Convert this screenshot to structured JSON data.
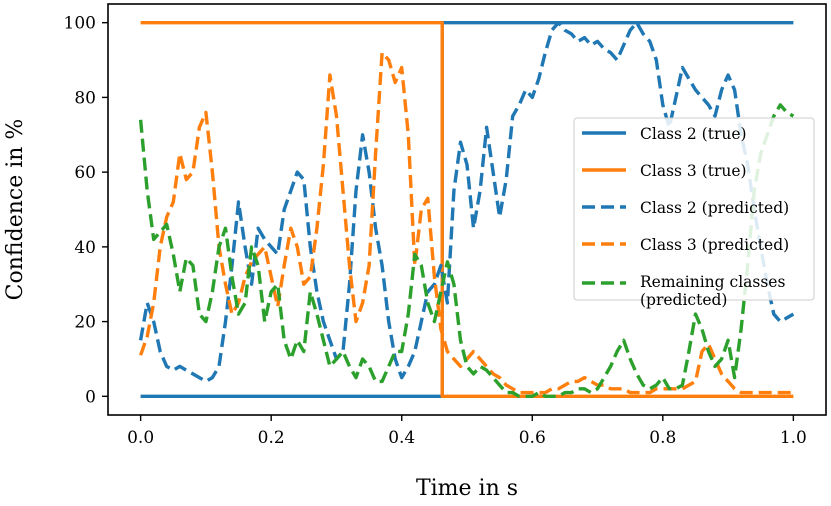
{
  "chart_data": {
    "type": "line",
    "title": "",
    "xlabel": "Time in s",
    "ylabel": "Confidence in %",
    "xlim": [
      -0.05,
      1.05
    ],
    "ylim": [
      -5,
      105
    ],
    "xticks": [
      0.0,
      0.2,
      0.4,
      0.6,
      0.8,
      1.0
    ],
    "xtick_labels": [
      "0.0",
      "0.2",
      "0.4",
      "0.6",
      "0.8",
      "1.0"
    ],
    "yticks": [
      0,
      20,
      40,
      60,
      80,
      100
    ],
    "ytick_labels": [
      "0",
      "20",
      "40",
      "60",
      "80",
      "100"
    ],
    "grid": false,
    "legend_position": "center-right",
    "series": [
      {
        "name": "Class 2 (true)",
        "label_lines": [
          "Class 2 (true)"
        ],
        "color": "#1f77b4",
        "style": "solid",
        "x": [
          0.0,
          0.462,
          0.462,
          1.0
        ],
        "y": [
          0,
          0,
          100,
          100
        ]
      },
      {
        "name": "Class 3 (true)",
        "label_lines": [
          "Class 3 (true)"
        ],
        "color": "#ff7f0e",
        "style": "solid",
        "x": [
          0.0,
          0.462,
          0.462,
          1.0
        ],
        "y": [
          100,
          100,
          0,
          0
        ]
      },
      {
        "name": "Class 2 (predicted)",
        "label_lines": [
          "Class 2 (predicted)"
        ],
        "color": "#1f77b4",
        "style": "dashed",
        "x": [
          0.0,
          0.01,
          0.02,
          0.03,
          0.04,
          0.05,
          0.06,
          0.07,
          0.08,
          0.09,
          0.1,
          0.11,
          0.12,
          0.13,
          0.14,
          0.15,
          0.16,
          0.17,
          0.18,
          0.19,
          0.2,
          0.21,
          0.22,
          0.23,
          0.24,
          0.25,
          0.26,
          0.27,
          0.28,
          0.29,
          0.3,
          0.31,
          0.32,
          0.33,
          0.34,
          0.35,
          0.36,
          0.37,
          0.38,
          0.39,
          0.4,
          0.41,
          0.42,
          0.43,
          0.44,
          0.45,
          0.46,
          0.47,
          0.48,
          0.49,
          0.5,
          0.51,
          0.52,
          0.53,
          0.54,
          0.55,
          0.56,
          0.57,
          0.58,
          0.59,
          0.6,
          0.61,
          0.62,
          0.63,
          0.64,
          0.65,
          0.66,
          0.67,
          0.68,
          0.69,
          0.7,
          0.71,
          0.72,
          0.73,
          0.74,
          0.75,
          0.76,
          0.77,
          0.78,
          0.79,
          0.8,
          0.81,
          0.82,
          0.83,
          0.84,
          0.85,
          0.86,
          0.87,
          0.88,
          0.89,
          0.9,
          0.91,
          0.92,
          0.93,
          0.94,
          0.95,
          0.96,
          0.97,
          0.98,
          0.99,
          1.0
        ],
        "y": [
          15,
          25,
          20,
          12,
          8,
          7,
          8,
          7,
          6,
          5,
          4,
          5,
          8,
          20,
          35,
          52,
          40,
          30,
          45,
          42,
          40,
          38,
          50,
          55,
          60,
          58,
          40,
          28,
          20,
          15,
          10,
          12,
          30,
          55,
          70,
          60,
          45,
          35,
          20,
          10,
          5,
          8,
          12,
          20,
          28,
          30,
          35,
          25,
          55,
          68,
          62,
          45,
          55,
          72,
          60,
          48,
          58,
          75,
          78,
          82,
          80,
          85,
          92,
          98,
          100,
          98,
          97,
          95,
          96,
          94,
          95,
          93,
          92,
          90,
          94,
          98,
          100,
          97,
          95,
          90,
          78,
          72,
          80,
          88,
          85,
          82,
          80,
          78,
          75,
          82,
          86,
          82,
          70,
          62,
          50,
          40,
          30,
          22,
          20,
          21,
          22
        ]
      },
      {
        "name": "Class 3 (predicted)",
        "label_lines": [
          "Class 3 (predicted)"
        ],
        "color": "#ff7f0e",
        "style": "dashed",
        "x": [
          0.0,
          0.01,
          0.02,
          0.03,
          0.04,
          0.05,
          0.06,
          0.07,
          0.08,
          0.09,
          0.1,
          0.11,
          0.12,
          0.13,
          0.14,
          0.15,
          0.16,
          0.17,
          0.18,
          0.19,
          0.2,
          0.21,
          0.22,
          0.23,
          0.24,
          0.25,
          0.26,
          0.27,
          0.28,
          0.29,
          0.3,
          0.31,
          0.32,
          0.33,
          0.34,
          0.35,
          0.36,
          0.37,
          0.38,
          0.39,
          0.4,
          0.41,
          0.42,
          0.43,
          0.44,
          0.45,
          0.46,
          0.47,
          0.48,
          0.49,
          0.5,
          0.51,
          0.52,
          0.53,
          0.54,
          0.55,
          0.56,
          0.57,
          0.58,
          0.59,
          0.6,
          0.61,
          0.62,
          0.63,
          0.64,
          0.65,
          0.66,
          0.67,
          0.68,
          0.69,
          0.7,
          0.71,
          0.72,
          0.73,
          0.74,
          0.75,
          0.76,
          0.77,
          0.78,
          0.79,
          0.8,
          0.81,
          0.82,
          0.83,
          0.84,
          0.85,
          0.86,
          0.87,
          0.88,
          0.89,
          0.9,
          0.91,
          0.92,
          0.93,
          0.94,
          0.95,
          0.96,
          0.97,
          0.98,
          0.99,
          1.0
        ],
        "y": [
          11,
          16,
          25,
          40,
          48,
          52,
          65,
          58,
          60,
          72,
          76,
          60,
          40,
          30,
          22,
          25,
          32,
          36,
          38,
          40,
          32,
          24,
          35,
          45,
          40,
          30,
          32,
          45,
          62,
          86,
          75,
          55,
          35,
          20,
          25,
          35,
          65,
          92,
          90,
          84,
          88,
          70,
          35,
          50,
          53,
          32,
          18,
          12,
          10,
          8,
          10,
          12,
          10,
          8,
          6,
          5,
          3,
          2,
          1,
          1,
          1,
          1,
          1,
          2,
          2,
          3,
          4,
          4,
          5,
          4,
          3,
          3,
          2,
          2,
          2,
          1,
          1,
          1,
          1,
          2,
          2,
          2,
          2,
          2,
          3,
          4,
          12,
          14,
          10,
          6,
          4,
          2,
          1,
          1,
          1,
          1,
          1,
          1,
          1,
          1,
          1
        ]
      },
      {
        "name": "Remaining classes (predicted)",
        "label_lines": [
          "Remaining classes",
          "(predicted)"
        ],
        "color": "#2ca02c",
        "style": "dashed",
        "x": [
          0.0,
          0.01,
          0.02,
          0.03,
          0.04,
          0.05,
          0.06,
          0.07,
          0.08,
          0.09,
          0.1,
          0.11,
          0.12,
          0.13,
          0.14,
          0.15,
          0.16,
          0.17,
          0.18,
          0.19,
          0.2,
          0.21,
          0.22,
          0.23,
          0.24,
          0.25,
          0.26,
          0.27,
          0.28,
          0.29,
          0.3,
          0.31,
          0.32,
          0.33,
          0.34,
          0.35,
          0.36,
          0.37,
          0.38,
          0.39,
          0.4,
          0.41,
          0.42,
          0.43,
          0.44,
          0.45,
          0.46,
          0.47,
          0.48,
          0.49,
          0.5,
          0.51,
          0.52,
          0.53,
          0.54,
          0.55,
          0.56,
          0.57,
          0.58,
          0.59,
          0.6,
          0.61,
          0.62,
          0.63,
          0.64,
          0.65,
          0.66,
          0.67,
          0.68,
          0.69,
          0.7,
          0.71,
          0.72,
          0.73,
          0.74,
          0.75,
          0.76,
          0.77,
          0.78,
          0.79,
          0.8,
          0.81,
          0.82,
          0.83,
          0.84,
          0.85,
          0.86,
          0.87,
          0.88,
          0.89,
          0.9,
          0.91,
          0.92,
          0.93,
          0.94,
          0.95,
          0.96,
          0.97,
          0.98,
          0.99,
          1.0
        ],
        "y": [
          74,
          55,
          42,
          44,
          46,
          38,
          28,
          37,
          35,
          22,
          20,
          28,
          40,
          45,
          32,
          22,
          25,
          40,
          35,
          20,
          28,
          30,
          15,
          10,
          15,
          12,
          28,
          22,
          15,
          8,
          10,
          12,
          8,
          5,
          10,
          8,
          4,
          4,
          8,
          12,
          12,
          22,
          38,
          35,
          25,
          20,
          28,
          36,
          30,
          15,
          8,
          6,
          8,
          7,
          5,
          3,
          1,
          1,
          0,
          0,
          0,
          1,
          0,
          0,
          0,
          1,
          1,
          2,
          2,
          1,
          2,
          5,
          8,
          12,
          15,
          10,
          6,
          3,
          2,
          3,
          5,
          2,
          2,
          3,
          12,
          22,
          18,
          12,
          8,
          10,
          15,
          5,
          18,
          35,
          55,
          65,
          70,
          75,
          78,
          76,
          75
        ]
      }
    ]
  }
}
